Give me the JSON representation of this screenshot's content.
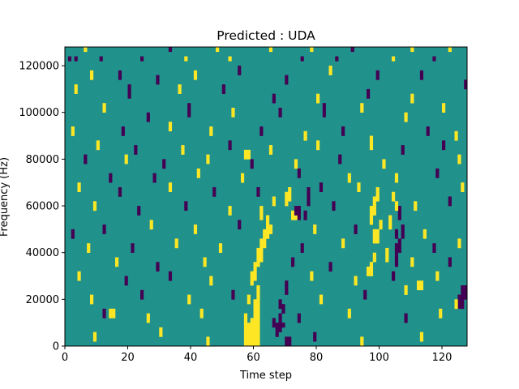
{
  "chart_data": {
    "type": "heatmap",
    "title": "Predicted : UDA",
    "xlabel": "Time step",
    "ylabel": "Frequency (Hz)",
    "xlim": [
      0,
      128
    ],
    "ylim": [
      0,
      128000
    ],
    "x_ticks": [
      0,
      20,
      40,
      60,
      80,
      100,
      120
    ],
    "y_ticks": [
      0,
      20000,
      40000,
      60000,
      80000,
      100000,
      120000
    ],
    "x_tick_labels": [
      "0",
      "20",
      "40",
      "60",
      "80",
      "100",
      "120"
    ],
    "y_tick_labels": [
      "0",
      "20000",
      "40000",
      "60000",
      "80000",
      "100000",
      "120000"
    ],
    "n_time_steps": 128,
    "n_freq_bins": 64,
    "bin_height_hz": 2000,
    "colormap": "viridis",
    "colors": {
      "background": "#21918c",
      "low": "#440154",
      "high": "#fde725"
    },
    "cells": [
      {
        "t": 57,
        "f0": 6000,
        "f1": 14000,
        "v": 1
      },
      {
        "t": 57,
        "f0": 0,
        "f1": 6000,
        "v": 1
      },
      {
        "t": 58,
        "f0": 0,
        "f1": 10000,
        "v": 1
      },
      {
        "t": 59,
        "f0": 0,
        "f1": 12000,
        "v": 1
      },
      {
        "t": 60,
        "f0": 0,
        "f1": 20000,
        "v": 1
      },
      {
        "t": 61,
        "f0": 0,
        "f1": 26000,
        "v": 1
      },
      {
        "t": 58,
        "f0": 18000,
        "f1": 22000,
        "v": 1
      },
      {
        "t": 59,
        "f0": 26000,
        "f1": 32000,
        "v": 1
      },
      {
        "t": 60,
        "f0": 28000,
        "f1": 36000,
        "v": 1
      },
      {
        "t": 61,
        "f0": 34000,
        "f1": 42000,
        "v": 1
      },
      {
        "t": 62,
        "f0": 36000,
        "f1": 46000,
        "v": 1
      },
      {
        "t": 63,
        "f0": 42000,
        "f1": 50000,
        "v": 1
      },
      {
        "t": 64,
        "f0": 46000,
        "f1": 56000,
        "v": 1
      },
      {
        "t": 65,
        "f0": 48000,
        "f1": 52000,
        "v": 1
      },
      {
        "t": 66,
        "f0": 60000,
        "f1": 64000,
        "v": 1
      },
      {
        "t": 62,
        "f0": 54000,
        "f1": 60000,
        "v": 1
      },
      {
        "t": 72,
        "f0": 54000,
        "f1": 58000,
        "v": 1
      },
      {
        "t": 73,
        "f0": 54000,
        "f1": 58000,
        "v": 1
      },
      {
        "t": 73,
        "f0": 56000,
        "f1": 60000,
        "v": 0
      },
      {
        "t": 74,
        "f0": 54000,
        "f1": 60000,
        "v": 0
      },
      {
        "t": 70,
        "f0": 60000,
        "f1": 66000,
        "v": 1
      },
      {
        "t": 71,
        "f0": 62000,
        "f1": 68000,
        "v": 1
      },
      {
        "t": 77,
        "f0": 60000,
        "f1": 68000,
        "v": 0
      },
      {
        "t": 76,
        "f0": 54000,
        "f1": 58000,
        "v": 0
      },
      {
        "t": 96,
        "f0": 30000,
        "f1": 34000,
        "v": 1
      },
      {
        "t": 97,
        "f0": 30000,
        "f1": 36000,
        "v": 1
      },
      {
        "t": 98,
        "f0": 36000,
        "f1": 40000,
        "v": 1
      },
      {
        "t": 98,
        "f0": 44000,
        "f1": 50000,
        "v": 1
      },
      {
        "t": 99,
        "f0": 44000,
        "f1": 50000,
        "v": 1
      },
      {
        "t": 97,
        "f0": 52000,
        "f1": 60000,
        "v": 1
      },
      {
        "t": 98,
        "f0": 56000,
        "f1": 64000,
        "v": 1
      },
      {
        "t": 99,
        "f0": 62000,
        "f1": 68000,
        "v": 1
      },
      {
        "t": 100,
        "f0": 50000,
        "f1": 54000,
        "v": 1
      },
      {
        "t": 97,
        "f0": 84000,
        "f1": 90000,
        "v": 1
      },
      {
        "t": 105,
        "f0": 46000,
        "f1": 50000,
        "v": 0
      },
      {
        "t": 105,
        "f0": 34000,
        "f1": 44000,
        "v": 0
      },
      {
        "t": 106,
        "f0": 40000,
        "f1": 46000,
        "v": 0
      },
      {
        "t": 107,
        "f0": 46000,
        "f1": 52000,
        "v": 0
      },
      {
        "t": 106,
        "f0": 54000,
        "f1": 60000,
        "v": 0
      },
      {
        "t": 105,
        "f0": 58000,
        "f1": 62000,
        "v": 1
      },
      {
        "t": 104,
        "f0": 62000,
        "f1": 66000,
        "v": 1
      },
      {
        "t": 103,
        "f0": 50000,
        "f1": 56000,
        "v": 1
      },
      {
        "t": 104,
        "f0": 28000,
        "f1": 32000,
        "v": 0
      },
      {
        "t": 102,
        "f0": 36000,
        "f1": 42000,
        "v": 1
      },
      {
        "t": 126,
        "f0": 16000,
        "f1": 26000,
        "v": 0
      },
      {
        "t": 127,
        "f0": 20000,
        "f1": 26000,
        "v": 0
      },
      {
        "t": 125,
        "f0": 16000,
        "f1": 22000,
        "v": 0
      },
      {
        "t": 108,
        "f0": 22000,
        "f1": 26000,
        "v": 1
      },
      {
        "t": 112,
        "f0": 24000,
        "f1": 28000,
        "v": 1
      },
      {
        "t": 113,
        "f0": 24000,
        "f1": 28000,
        "v": 1
      },
      {
        "t": 68,
        "f0": 16000,
        "f1": 20000,
        "v": 0
      },
      {
        "t": 69,
        "f0": 14000,
        "f1": 18000,
        "v": 0
      },
      {
        "t": 68,
        "f0": 6000,
        "f1": 14000,
        "v": 0
      },
      {
        "t": 69,
        "f0": 8000,
        "f1": 10000,
        "v": 0
      },
      {
        "t": 67,
        "f0": 4000,
        "f1": 10000,
        "v": 0
      },
      {
        "t": 66,
        "f0": 8000,
        "f1": 12000,
        "v": 0
      },
      {
        "t": 70,
        "f0": 0,
        "f1": 4000,
        "v": 0
      },
      {
        "t": 71,
        "f0": 0,
        "f1": 4000,
        "v": 0
      },
      {
        "t": 70,
        "f0": 22000,
        "f1": 28000,
        "v": 0
      },
      {
        "t": 14,
        "f0": 12000,
        "f1": 16000,
        "v": 1
      },
      {
        "t": 15,
        "f0": 12000,
        "f1": 16000,
        "v": 1
      },
      {
        "t": 57,
        "f0": 80000,
        "f1": 84000,
        "v": 1
      },
      {
        "t": 58,
        "f0": 80000,
        "f1": 84000,
        "v": 1
      },
      {
        "t": 1,
        "f0": 122000,
        "f1": 124000,
        "v": 0
      },
      {
        "t": 3,
        "f0": 122000,
        "f1": 124000,
        "v": 0
      },
      {
        "t": 11,
        "f0": 122000,
        "f1": 124000,
        "v": 0
      },
      {
        "t": 24,
        "f0": 122000,
        "f1": 124000,
        "v": 0
      },
      {
        "t": 38,
        "f0": 122000,
        "f1": 124000,
        "v": 1
      },
      {
        "t": 52,
        "f0": 122000,
        "f1": 124000,
        "v": 1
      },
      {
        "t": 75,
        "f0": 122000,
        "f1": 124000,
        "v": 0
      },
      {
        "t": 86,
        "f0": 122000,
        "f1": 124000,
        "v": 0
      },
      {
        "t": 104,
        "f0": 122000,
        "f1": 124000,
        "v": 1
      },
      {
        "t": 117,
        "f0": 122000,
        "f1": 124000,
        "v": 0
      },
      {
        "t": 6,
        "f0": 126000,
        "f1": 128000,
        "v": 1
      },
      {
        "t": 33,
        "f0": 126000,
        "f1": 128000,
        "v": 0
      },
      {
        "t": 48,
        "f0": 126000,
        "f1": 128000,
        "v": 1
      },
      {
        "t": 65,
        "f0": 126000,
        "f1": 128000,
        "v": 1
      },
      {
        "t": 78,
        "f0": 126000,
        "f1": 128000,
        "v": 1
      },
      {
        "t": 91,
        "f0": 126000,
        "f1": 128000,
        "v": 0
      },
      {
        "t": 110,
        "f0": 126000,
        "f1": 128000,
        "v": 1
      },
      {
        "t": 122,
        "f0": 126000,
        "f1": 128000,
        "v": 1
      },
      {
        "t": 8,
        "f0": 114000,
        "f1": 118000,
        "v": 1
      },
      {
        "t": 17,
        "f0": 114000,
        "f1": 118000,
        "v": 0
      },
      {
        "t": 29,
        "f0": 112000,
        "f1": 116000,
        "v": 0
      },
      {
        "t": 41,
        "f0": 114000,
        "f1": 118000,
        "v": 1
      },
      {
        "t": 55,
        "f0": 116000,
        "f1": 120000,
        "v": 0
      },
      {
        "t": 70,
        "f0": 112000,
        "f1": 116000,
        "v": 0
      },
      {
        "t": 84,
        "f0": 116000,
        "f1": 120000,
        "v": 1
      },
      {
        "t": 99,
        "f0": 114000,
        "f1": 118000,
        "v": 0
      },
      {
        "t": 113,
        "f0": 114000,
        "f1": 118000,
        "v": 0
      },
      {
        "t": 127,
        "f0": 110000,
        "f1": 114000,
        "v": 0
      },
      {
        "t": 3,
        "f0": 108000,
        "f1": 112000,
        "v": 1
      },
      {
        "t": 20,
        "f0": 106000,
        "f1": 112000,
        "v": 0
      },
      {
        "t": 36,
        "f0": 108000,
        "f1": 112000,
        "v": 1
      },
      {
        "t": 50,
        "f0": 108000,
        "f1": 112000,
        "v": 0
      },
      {
        "t": 66,
        "f0": 104000,
        "f1": 108000,
        "v": 0
      },
      {
        "t": 80,
        "f0": 104000,
        "f1": 108000,
        "v": 1
      },
      {
        "t": 96,
        "f0": 106000,
        "f1": 110000,
        "v": 0
      },
      {
        "t": 110,
        "f0": 104000,
        "f1": 108000,
        "v": 1
      },
      {
        "t": 120,
        "f0": 100000,
        "f1": 104000,
        "v": 1
      },
      {
        "t": 12,
        "f0": 100000,
        "f1": 104000,
        "v": 1
      },
      {
        "t": 26,
        "f0": 96000,
        "f1": 100000,
        "v": 0
      },
      {
        "t": 39,
        "f0": 98000,
        "f1": 104000,
        "v": 0
      },
      {
        "t": 53,
        "f0": 98000,
        "f1": 102000,
        "v": 1
      },
      {
        "t": 68,
        "f0": 98000,
        "f1": 102000,
        "v": 0
      },
      {
        "t": 82,
        "f0": 98000,
        "f1": 104000,
        "v": 0
      },
      {
        "t": 94,
        "f0": 100000,
        "f1": 104000,
        "v": 1
      },
      {
        "t": 108,
        "f0": 96000,
        "f1": 100000,
        "v": 1
      },
      {
        "t": 2,
        "f0": 90000,
        "f1": 94000,
        "v": 1
      },
      {
        "t": 18,
        "f0": 90000,
        "f1": 94000,
        "v": 0
      },
      {
        "t": 33,
        "f0": 92000,
        "f1": 96000,
        "v": 1
      },
      {
        "t": 46,
        "f0": 90000,
        "f1": 94000,
        "v": 1
      },
      {
        "t": 62,
        "f0": 90000,
        "f1": 94000,
        "v": 0
      },
      {
        "t": 76,
        "f0": 88000,
        "f1": 92000,
        "v": 1
      },
      {
        "t": 88,
        "f0": 90000,
        "f1": 94000,
        "v": 0
      },
      {
        "t": 115,
        "f0": 90000,
        "f1": 94000,
        "v": 0
      },
      {
        "t": 124,
        "f0": 88000,
        "f1": 92000,
        "v": 1
      },
      {
        "t": 10,
        "f0": 84000,
        "f1": 88000,
        "v": 1
      },
      {
        "t": 22,
        "f0": 82000,
        "f1": 86000,
        "v": 0
      },
      {
        "t": 37,
        "f0": 82000,
        "f1": 86000,
        "v": 1
      },
      {
        "t": 52,
        "f0": 84000,
        "f1": 88000,
        "v": 0
      },
      {
        "t": 65,
        "f0": 82000,
        "f1": 86000,
        "v": 1
      },
      {
        "t": 80,
        "f0": 84000,
        "f1": 88000,
        "v": 1
      },
      {
        "t": 107,
        "f0": 82000,
        "f1": 86000,
        "v": 0
      },
      {
        "t": 120,
        "f0": 84000,
        "f1": 88000,
        "v": 0
      },
      {
        "t": 6,
        "f0": 78000,
        "f1": 82000,
        "v": 0
      },
      {
        "t": 19,
        "f0": 78000,
        "f1": 82000,
        "v": 1
      },
      {
        "t": 31,
        "f0": 76000,
        "f1": 80000,
        "v": 0
      },
      {
        "t": 45,
        "f0": 78000,
        "f1": 82000,
        "v": 1
      },
      {
        "t": 59,
        "f0": 76000,
        "f1": 80000,
        "v": 0
      },
      {
        "t": 73,
        "f0": 76000,
        "f1": 80000,
        "v": 1
      },
      {
        "t": 87,
        "f0": 78000,
        "f1": 82000,
        "v": 0
      },
      {
        "t": 101,
        "f0": 76000,
        "f1": 80000,
        "v": 1
      },
      {
        "t": 125,
        "f0": 78000,
        "f1": 82000,
        "v": 1
      },
      {
        "t": 14,
        "f0": 70000,
        "f1": 74000,
        "v": 0
      },
      {
        "t": 28,
        "f0": 70000,
        "f1": 74000,
        "v": 0
      },
      {
        "t": 42,
        "f0": 72000,
        "f1": 76000,
        "v": 1
      },
      {
        "t": 56,
        "f0": 70000,
        "f1": 74000,
        "v": 1
      },
      {
        "t": 74,
        "f0": 72000,
        "f1": 76000,
        "v": 0
      },
      {
        "t": 90,
        "f0": 70000,
        "f1": 74000,
        "v": 1
      },
      {
        "t": 105,
        "f0": 70000,
        "f1": 74000,
        "v": 1
      },
      {
        "t": 118,
        "f0": 72000,
        "f1": 76000,
        "v": 0
      },
      {
        "t": 4,
        "f0": 66000,
        "f1": 70000,
        "v": 1
      },
      {
        "t": 17,
        "f0": 64000,
        "f1": 68000,
        "v": 0
      },
      {
        "t": 33,
        "f0": 66000,
        "f1": 70000,
        "v": 1
      },
      {
        "t": 47,
        "f0": 64000,
        "f1": 68000,
        "v": 0
      },
      {
        "t": 61,
        "f0": 64000,
        "f1": 68000,
        "v": 0
      },
      {
        "t": 81,
        "f0": 66000,
        "f1": 70000,
        "v": 0
      },
      {
        "t": 93,
        "f0": 66000,
        "f1": 70000,
        "v": 1
      },
      {
        "t": 126,
        "f0": 66000,
        "f1": 70000,
        "v": 1
      },
      {
        "t": 9,
        "f0": 58000,
        "f1": 62000,
        "v": 1
      },
      {
        "t": 23,
        "f0": 56000,
        "f1": 60000,
        "v": 0
      },
      {
        "t": 38,
        "f0": 58000,
        "f1": 62000,
        "v": 0
      },
      {
        "t": 52,
        "f0": 56000,
        "f1": 60000,
        "v": 1
      },
      {
        "t": 85,
        "f0": 58000,
        "f1": 62000,
        "v": 0
      },
      {
        "t": 111,
        "f0": 58000,
        "f1": 62000,
        "v": 1
      },
      {
        "t": 122,
        "f0": 60000,
        "f1": 64000,
        "v": 0
      },
      {
        "t": 2,
        "f0": 46000,
        "f1": 50000,
        "v": 0
      },
      {
        "t": 12,
        "f0": 48000,
        "f1": 52000,
        "v": 0
      },
      {
        "t": 27,
        "f0": 50000,
        "f1": 54000,
        "v": 1
      },
      {
        "t": 41,
        "f0": 48000,
        "f1": 52000,
        "v": 1
      },
      {
        "t": 55,
        "f0": 50000,
        "f1": 54000,
        "v": 0
      },
      {
        "t": 79,
        "f0": 48000,
        "f1": 52000,
        "v": 1
      },
      {
        "t": 92,
        "f0": 48000,
        "f1": 52000,
        "v": 0
      },
      {
        "t": 114,
        "f0": 46000,
        "f1": 50000,
        "v": 1
      },
      {
        "t": 7,
        "f0": 40000,
        "f1": 44000,
        "v": 1
      },
      {
        "t": 21,
        "f0": 40000,
        "f1": 44000,
        "v": 0
      },
      {
        "t": 35,
        "f0": 42000,
        "f1": 46000,
        "v": 1
      },
      {
        "t": 49,
        "f0": 40000,
        "f1": 44000,
        "v": 1
      },
      {
        "t": 75,
        "f0": 40000,
        "f1": 44000,
        "v": 0
      },
      {
        "t": 88,
        "f0": 42000,
        "f1": 46000,
        "v": 1
      },
      {
        "t": 117,
        "f0": 40000,
        "f1": 44000,
        "v": 0
      },
      {
        "t": 125,
        "f0": 42000,
        "f1": 46000,
        "v": 1
      },
      {
        "t": 16,
        "f0": 34000,
        "f1": 38000,
        "v": 1
      },
      {
        "t": 29,
        "f0": 32000,
        "f1": 36000,
        "v": 0
      },
      {
        "t": 44,
        "f0": 34000,
        "f1": 38000,
        "v": 1
      },
      {
        "t": 72,
        "f0": 34000,
        "f1": 38000,
        "v": 0
      },
      {
        "t": 84,
        "f0": 32000,
        "f1": 36000,
        "v": 0
      },
      {
        "t": 110,
        "f0": 34000,
        "f1": 38000,
        "v": 1
      },
      {
        "t": 122,
        "f0": 34000,
        "f1": 38000,
        "v": 0
      },
      {
        "t": 4,
        "f0": 28000,
        "f1": 32000,
        "v": 1
      },
      {
        "t": 19,
        "f0": 26000,
        "f1": 30000,
        "v": 0
      },
      {
        "t": 33,
        "f0": 28000,
        "f1": 32000,
        "v": 0
      },
      {
        "t": 46,
        "f0": 26000,
        "f1": 30000,
        "v": 1
      },
      {
        "t": 78,
        "f0": 28000,
        "f1": 32000,
        "v": 1
      },
      {
        "t": 92,
        "f0": 26000,
        "f1": 30000,
        "v": 1
      },
      {
        "t": 118,
        "f0": 28000,
        "f1": 32000,
        "v": 1
      },
      {
        "t": 8,
        "f0": 18000,
        "f1": 22000,
        "v": 1
      },
      {
        "t": 24,
        "f0": 20000,
        "f1": 24000,
        "v": 0
      },
      {
        "t": 39,
        "f0": 18000,
        "f1": 22000,
        "v": 1
      },
      {
        "t": 53,
        "f0": 20000,
        "f1": 24000,
        "v": 0
      },
      {
        "t": 81,
        "f0": 18000,
        "f1": 22000,
        "v": 1
      },
      {
        "t": 95,
        "f0": 20000,
        "f1": 24000,
        "v": 0
      },
      {
        "t": 124,
        "f0": 16000,
        "f1": 20000,
        "v": 1
      },
      {
        "t": 12,
        "f0": 12000,
        "f1": 16000,
        "v": 0
      },
      {
        "t": 26,
        "f0": 10000,
        "f1": 14000,
        "v": 1
      },
      {
        "t": 43,
        "f0": 12000,
        "f1": 16000,
        "v": 1
      },
      {
        "t": 74,
        "f0": 10000,
        "f1": 14000,
        "v": 0
      },
      {
        "t": 90,
        "f0": 12000,
        "f1": 16000,
        "v": 1
      },
      {
        "t": 108,
        "f0": 10000,
        "f1": 14000,
        "v": 0
      },
      {
        "t": 119,
        "f0": 12000,
        "f1": 16000,
        "v": 1
      },
      {
        "t": 9,
        "f0": 2000,
        "f1": 6000,
        "v": 1
      },
      {
        "t": 30,
        "f0": 4000,
        "f1": 8000,
        "v": 1
      },
      {
        "t": 45,
        "f0": 0,
        "f1": 4000,
        "v": 1
      },
      {
        "t": 79,
        "f0": 2000,
        "f1": 6000,
        "v": 0
      },
      {
        "t": 94,
        "f0": 0,
        "f1": 4000,
        "v": 1
      },
      {
        "t": 113,
        "f0": 2000,
        "f1": 6000,
        "v": 1
      }
    ]
  }
}
